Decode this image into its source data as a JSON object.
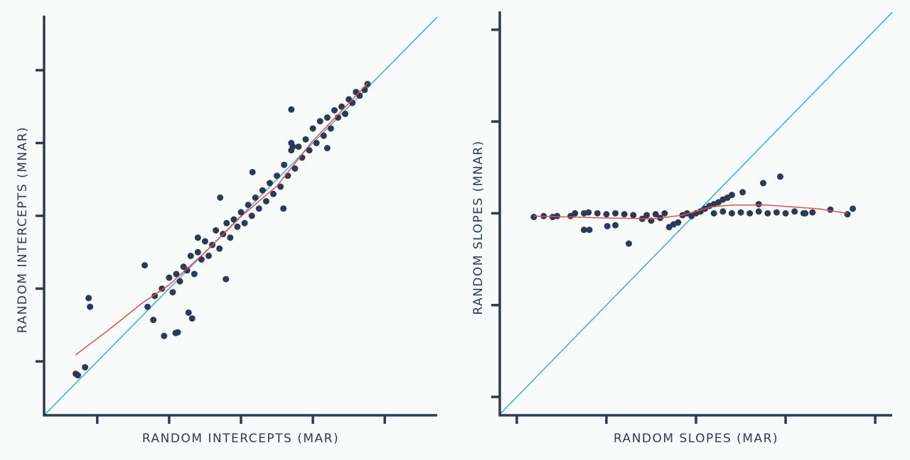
{
  "chart_data": [
    {
      "type": "scatter",
      "x_label": "RANDOM INTERCEPTS (MAR)",
      "y_label": "RANDOM INTERCEPTS (MNAR)",
      "color": "#2b3a55",
      "xlim": [
        -2.74,
        2.73
      ],
      "ylim": [
        -2.74,
        2.75
      ],
      "xticks": [
        -2,
        -1,
        0,
        1,
        2
      ],
      "yticks": [
        -2,
        -1,
        0,
        1,
        2
      ],
      "identity_line": {
        "color": "#3fa9e0"
      },
      "smooth": {
        "color": "#e0504a",
        "x": [
          -2.3,
          -1.78,
          -1.39,
          -0.99,
          -0.5,
          0,
          0.5,
          0.99,
          1.39,
          1.76
        ],
        "y": [
          -1.91,
          -1.52,
          -1.21,
          -0.94,
          -0.5,
          -0.01,
          0.41,
          1.02,
          1.43,
          1.82
        ]
      },
      "x": [
        -2.3,
        -2.27,
        -2.17,
        -2.12,
        -2.1,
        -1.34,
        -1.07,
        -0.91,
        -0.88,
        -0.73,
        -0.68,
        -1.22,
        0.7,
        0.16,
        -0.29,
        -0.21,
        0.59,
        1.76,
        1.72,
        -1.2,
        -1.1,
        -1.0,
        -0.95,
        -0.9,
        -0.85,
        -0.8,
        -0.75,
        -0.7,
        -0.65,
        -0.6,
        -0.55,
        -0.5,
        -0.45,
        -0.4,
        -0.35,
        -0.3,
        -0.25,
        -0.2,
        -0.15,
        -0.1,
        -0.05,
        0,
        0.05,
        0.1,
        0.15,
        0.2,
        0.25,
        0.3,
        0.35,
        0.4,
        0.45,
        0.5,
        0.55,
        0.6,
        0.65,
        0.7,
        0.75,
        0.8,
        0.85,
        0.9,
        0.95,
        1.0,
        1.05,
        1.1,
        1.15,
        1.2,
        1.25,
        1.3,
        1.35,
        1.4,
        1.45,
        1.5,
        1.55,
        1.6,
        1.65,
        0.7,
        0.72,
        1.2,
        -0.6,
        -1.3
      ],
      "y": [
        -2.17,
        -2.19,
        -2.08,
        -1.13,
        -1.25,
        -0.68,
        -1.65,
        -1.61,
        -1.6,
        -1.33,
        -1.41,
        -1.43,
        1.46,
        0.6,
        0.25,
        -0.87,
        0.1,
        1.81,
        1.73,
        -1.1,
        -1.0,
        -0.85,
        -1.05,
        -0.8,
        -0.9,
        -0.7,
        -0.75,
        -0.55,
        -0.8,
        -0.5,
        -0.6,
        -0.35,
        -0.55,
        -0.4,
        -0.2,
        -0.45,
        -0.25,
        -0.1,
        -0.3,
        -0.05,
        -0.15,
        0.05,
        -0.1,
        0.15,
        0.0,
        0.25,
        0.1,
        0.35,
        0.2,
        0.45,
        0.3,
        0.55,
        0.4,
        0.7,
        0.55,
        0.9,
        0.65,
        0.95,
        0.8,
        1.05,
        0.9,
        1.2,
        1.0,
        1.3,
        1.1,
        1.35,
        1.2,
        1.45,
        1.35,
        1.5,
        1.4,
        1.6,
        1.55,
        1.7,
        1.65,
        1.0,
        0.95,
        0.93,
        -0.3,
        -1.25
      ]
    },
    {
      "type": "scatter",
      "x_label": "RANDOM SLOPES (MAR)",
      "y_label": "RANDOM SLOPES (MNAR)",
      "color": "#2b3a55",
      "xlim": [
        -2.19,
        2.19
      ],
      "ylim": [
        -2.2,
        2.2
      ],
      "xticks": [
        -2,
        -1,
        0,
        1,
        2
      ],
      "yticks": [
        -2,
        -1,
        0,
        1,
        2
      ],
      "identity_line": {
        "color": "#3fa9e0"
      },
      "smooth": {
        "color": "#e0504a",
        "x": [
          -1.81,
          -1.02,
          -0.47,
          -0.15,
          0.17,
          0.4,
          0.8,
          1.36,
          1.69
        ],
        "y": [
          -0.03,
          -0.05,
          -0.06,
          -0.02,
          0.07,
          0.09,
          0.09,
          0.05,
          0.0
        ]
      },
      "x": [
        -1.81,
        1.75,
        0.94,
        0.75,
        -0.75,
        -1.25,
        -1.19,
        -0.99,
        -0.9,
        0.52,
        0.7,
        -1.7,
        -1.6,
        -1.55,
        -1.4,
        -1.35,
        -1.25,
        -1.2,
        -1.1,
        -1.0,
        -0.9,
        -0.8,
        -0.7,
        -0.6,
        -0.55,
        -0.5,
        -0.45,
        -0.4,
        -0.35,
        -0.3,
        -0.25,
        -0.2,
        -0.15,
        -0.1,
        -0.05,
        0,
        0.05,
        0.1,
        0.15,
        0.2,
        0.25,
        0.3,
        0.35,
        0.4,
        0.2,
        0.3,
        0.4,
        0.5,
        0.6,
        0.7,
        0.8,
        0.9,
        1.0,
        1.1,
        1.2,
        1.3,
        1.22,
        1.5,
        1.69
      ],
      "y": [
        -0.04,
        0.05,
        0.4,
        0.33,
        -0.33,
        -0.18,
        -0.18,
        -0.14,
        -0.13,
        0.23,
        0.1,
        -0.03,
        -0.04,
        -0.03,
        -0.03,
        0.0,
        0.0,
        0.01,
        0.0,
        -0.01,
        0.0,
        -0.01,
        -0.02,
        -0.06,
        -0.02,
        -0.08,
        -0.01,
        -0.05,
        0.0,
        -0.15,
        -0.12,
        -0.1,
        -0.02,
        0.0,
        -0.03,
        0.0,
        0.02,
        0.05,
        0.08,
        0.1,
        0.12,
        0.15,
        0.17,
        0.2,
        0.0,
        0.02,
        0.0,
        0.01,
        0.0,
        0.02,
        0.0,
        0.01,
        0.0,
        0.02,
        0.0,
        0.01,
        0.0,
        0.04,
        -0.01
      ]
    }
  ]
}
